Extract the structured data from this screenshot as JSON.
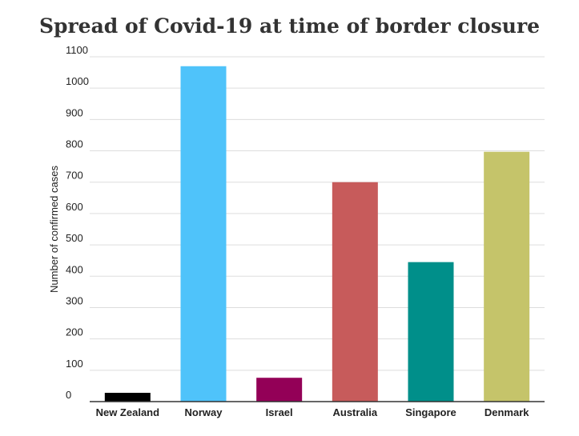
{
  "chart_data": {
    "type": "bar",
    "title": "Spread of Covid-19 at time of border closure",
    "xlabel": "",
    "ylabel": "Number of confirmed cases",
    "ylim": [
      0,
      1100
    ],
    "yticks": [
      0,
      100,
      200,
      300,
      400,
      500,
      600,
      700,
      800,
      900,
      1000,
      1100
    ],
    "grid": true,
    "categories": [
      "New Zealand",
      "Norway",
      "Israel",
      "Australia",
      "Singapore",
      "Denmark"
    ],
    "values": [
      28,
      1070,
      76,
      700,
      445,
      797
    ],
    "colors": [
      "#000000",
      "#4fc3fa",
      "#930057",
      "#c75b5b",
      "#008f8a",
      "#c5c46a"
    ]
  }
}
